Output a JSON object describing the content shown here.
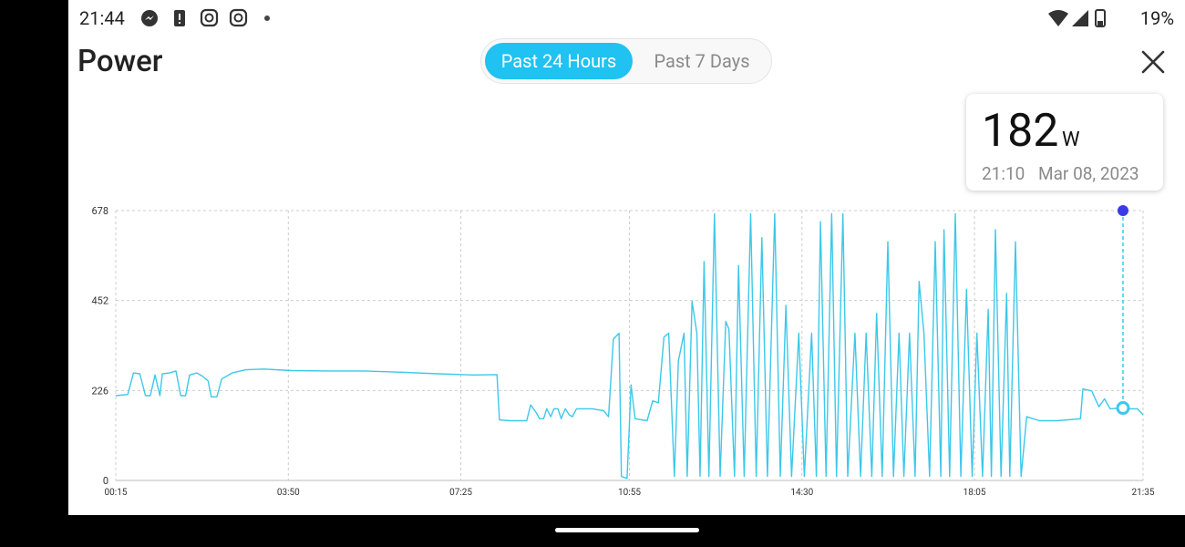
{
  "status_bar": {
    "time": "21:44",
    "battery": "19%"
  },
  "header": {
    "title": "Power",
    "tabs": [
      "Past 24 Hours",
      "Past 7 Days"
    ]
  },
  "tooltip": {
    "value": 182,
    "unit": "W",
    "time": "21:10",
    "date": "Mar 08, 2023"
  },
  "chart_data": {
    "type": "line",
    "color": "#3cc8ea",
    "grid": true,
    "x": [
      15,
      30,
      37,
      45,
      52,
      58,
      64,
      70,
      73,
      82,
      90,
      96,
      102,
      107,
      116,
      123,
      130,
      134,
      141,
      147,
      160,
      177,
      200,
      234,
      280,
      325,
      371,
      416,
      461,
      490,
      493,
      507,
      527,
      532,
      539,
      543,
      548,
      552,
      557,
      561,
      566,
      570,
      575,
      580,
      584,
      589,
      609,
      623,
      629,
      635,
      642,
      645,
      652,
      657,
      662,
      677,
      684,
      691,
      698,
      704,
      711,
      716,
      723,
      727,
      733,
      739,
      743,
      748,
      754,
      761,
      768,
      775,
      779,
      786,
      791,
      798,
      806,
      813,
      820,
      827,
      836,
      843,
      850,
      857,
      866,
      873,
      882,
      888,
      893,
      900,
      907,
      913,
      921,
      927,
      936,
      943,
      950,
      957,
      963,
      970,
      977,
      984,
      991,
      997,
      1004,
      1011,
      1016,
      1022,
      1029,
      1036,
      1043,
      1047,
      1054,
      1061,
      1068,
      1075,
      1082,
      1088,
      1095,
      1102,
      1106,
      1111,
      1118,
      1125,
      1129,
      1136,
      1143,
      1150,
      1166,
      1188,
      1217,
      1220,
      1231,
      1240,
      1247,
      1254,
      1270,
      1277,
      1288,
      1295
    ],
    "values": [
      213,
      216,
      270,
      268,
      213,
      213,
      265,
      213,
      268,
      270,
      275,
      213,
      213,
      265,
      270,
      262,
      250,
      210,
      210,
      255,
      270,
      278,
      280,
      276,
      275,
      275,
      272,
      268,
      265,
      266,
      152,
      150,
      150,
      190,
      170,
      155,
      155,
      180,
      160,
      180,
      180,
      155,
      180,
      165,
      160,
      180,
      180,
      175,
      160,
      355,
      370,
      10,
      5,
      240,
      155,
      150,
      200,
      195,
      360,
      370,
      10,
      300,
      370,
      10,
      450,
      370,
      10,
      550,
      10,
      670,
      10,
      400,
      380,
      10,
      540,
      10,
      670,
      10,
      610,
      10,
      670,
      10,
      440,
      10,
      370,
      10,
      370,
      10,
      650,
      10,
      670,
      10,
      670,
      10,
      370,
      10,
      370,
      10,
      420,
      10,
      600,
      10,
      370,
      10,
      370,
      10,
      500,
      370,
      10,
      600,
      10,
      630,
      10,
      670,
      10,
      480,
      10,
      370,
      10,
      430,
      10,
      630,
      10,
      470,
      10,
      600,
      10,
      160,
      150,
      150,
      155,
      230,
      225,
      185,
      205,
      180,
      182,
      180,
      180,
      165
    ],
    "xlim": [
      15,
      1295
    ],
    "xticks": [
      {
        "value": 15,
        "label": "00:15"
      },
      {
        "value": 230,
        "label": "03:50"
      },
      {
        "value": 445,
        "label": "07:25"
      },
      {
        "value": 655,
        "label": "10:55"
      },
      {
        "value": 870,
        "label": "14:30"
      },
      {
        "value": 1085,
        "label": "18:05"
      },
      {
        "value": 1295,
        "label": "21:35"
      }
    ],
    "ylim": [
      0,
      678
    ],
    "yticks": [
      0,
      226,
      452,
      678
    ]
  }
}
